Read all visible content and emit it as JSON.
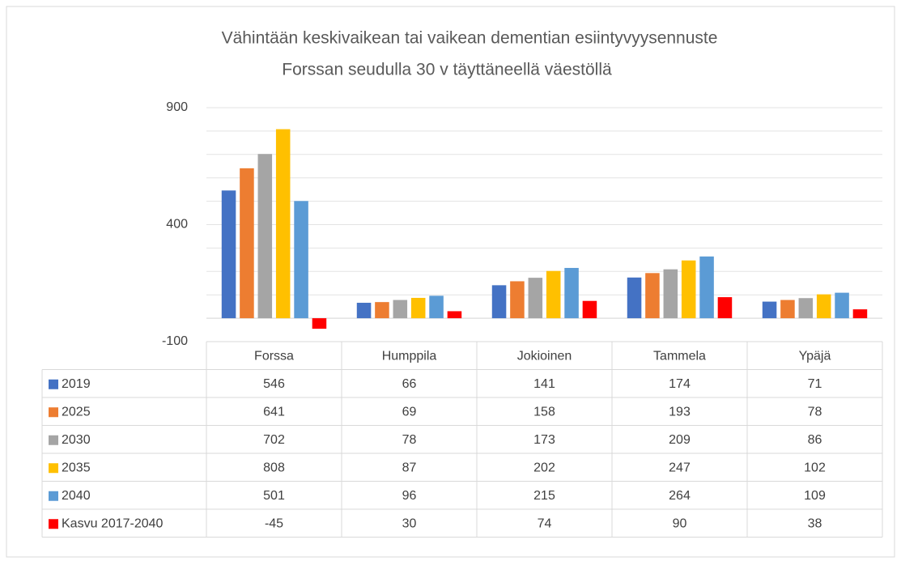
{
  "chart_data": {
    "type": "bar",
    "title": [
      "Vähintään keskivaikean tai vaikean dementian esiintyvyysennuste",
      "Forssan seudulla 30 v täyttäneellä väestöllä"
    ],
    "categories": [
      "Forssa",
      "Humppila",
      "Jokioinen",
      "Tammela",
      "Ypäjä"
    ],
    "series": [
      {
        "name": "2019",
        "color": "#4472c4",
        "values": [
          546,
          66,
          141,
          174,
          71
        ]
      },
      {
        "name": "2025",
        "color": "#ed7d31",
        "values": [
          641,
          69,
          158,
          193,
          78
        ]
      },
      {
        "name": "2030",
        "color": "#a5a5a5",
        "values": [
          702,
          78,
          173,
          209,
          86
        ]
      },
      {
        "name": "2035",
        "color": "#ffc000",
        "values": [
          808,
          87,
          202,
          247,
          102
        ]
      },
      {
        "name": "2040",
        "color": "#5b9bd5",
        "values": [
          501,
          96,
          215,
          264,
          109
        ]
      },
      {
        "name": "Kasvu 2017-2040",
        "color": "#ff0000",
        "values": [
          -45,
          30,
          74,
          90,
          38
        ]
      }
    ],
    "ylim": [
      -100,
      900
    ],
    "yticks": [
      -100,
      400,
      900
    ],
    "minor_yticks": [
      0,
      100,
      200,
      300,
      500,
      600,
      700,
      800
    ],
    "grid": true,
    "data_table": true
  }
}
